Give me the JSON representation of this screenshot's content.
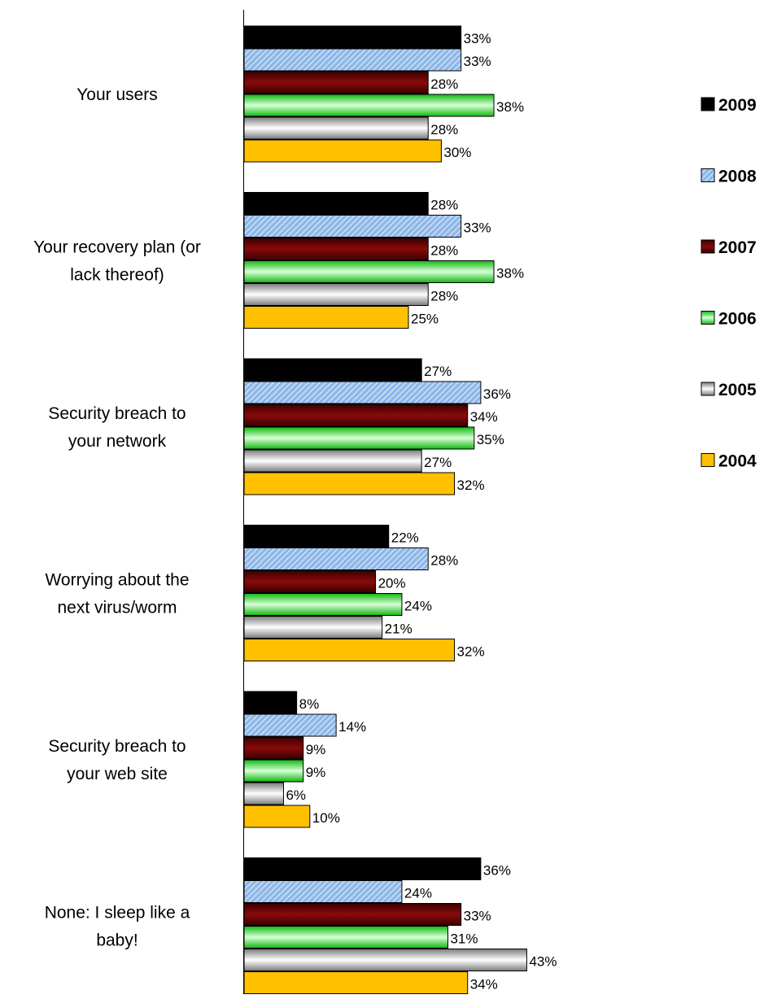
{
  "chart_data": {
    "type": "bar",
    "orientation": "horizontal",
    "categories": [
      [
        "Your users"
      ],
      [
        "Your recovery plan (or",
        "lack thereof)"
      ],
      [
        "Security breach to",
        "your network"
      ],
      [
        "Worrying about the",
        "next virus/worm"
      ],
      [
        "Security breach to",
        "your web site"
      ],
      [
        "None: I sleep like a",
        "baby!"
      ]
    ],
    "series": [
      {
        "name": "2009",
        "values": [
          33,
          28,
          27,
          22,
          8,
          36
        ],
        "color": "#000000",
        "fill": "solid"
      },
      {
        "name": "2008",
        "values": [
          33,
          33,
          36,
          28,
          14,
          24
        ],
        "color": "#8fb8e8",
        "fill": "hatch"
      },
      {
        "name": "2007",
        "values": [
          28,
          28,
          34,
          20,
          9,
          33
        ],
        "color": "#6b0000",
        "fill": "gradient-red"
      },
      {
        "name": "2006",
        "values": [
          38,
          38,
          35,
          24,
          9,
          31
        ],
        "color": "#33dd33",
        "fill": "gradient-green"
      },
      {
        "name": "2005",
        "values": [
          28,
          28,
          27,
          21,
          6,
          43
        ],
        "color": "#cccccc",
        "fill": "gradient-gray"
      },
      {
        "name": "2004",
        "values": [
          30,
          25,
          32,
          32,
          10,
          34
        ],
        "color": "#ffc000",
        "fill": "solid"
      }
    ],
    "value_suffix": "%",
    "xlim": [
      0,
      100
    ],
    "grid": false,
    "legend_position": "right"
  }
}
